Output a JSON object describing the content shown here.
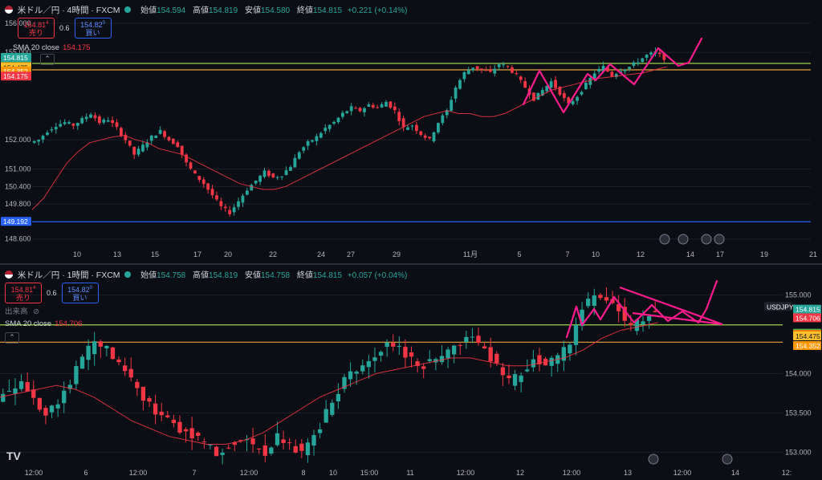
{
  "top": {
    "title": "米ドル／円 · 4時間 · FXCM",
    "ohlc": {
      "o_label": "始値",
      "o": "154.594",
      "h_label": "高値",
      "h": "154.819",
      "l_label": "安値",
      "l": "154.580",
      "c_label": "終値",
      "c": "154.815",
      "change": "+0.221 (+0.14%)"
    },
    "sell": {
      "price": "154.81",
      "sup": "4",
      "label": "売り"
    },
    "buy": {
      "price": "154.82",
      "sup": "0",
      "label": "買い"
    },
    "spread": "0.6",
    "sma_label": "SMA 20 close",
    "sma_value": "154.175"
  },
  "bottom": {
    "title": "米ドル／円 · 1時間 · FXCM",
    "ohlc": {
      "o_label": "始値",
      "o": "154.758",
      "h_label": "高値",
      "h": "154.819",
      "l_label": "安値",
      "l": "154.758",
      "c_label": "終値",
      "c": "154.815",
      "change": "+0.057 (+0.04%)"
    },
    "sell": {
      "price": "154.81",
      "sup": "4",
      "label": "売り"
    },
    "buy": {
      "price": "154.82",
      "sup": "0",
      "label": "買い"
    },
    "spread": "0.6",
    "volume_label": "出来高",
    "sma_label": "SMA 20 close",
    "sma_value": "154.706"
  },
  "chart_data": [
    {
      "type": "candlestick",
      "title": "米ドル／円 · 4時間 · FXCM",
      "ylim": [
        148.4,
        156.3
      ],
      "y_ticks": [
        "156.000",
        "155.000",
        "152.000",
        "151.000",
        "150.400",
        "149.800",
        "148.600"
      ],
      "x_ticks": [
        "10",
        "13",
        "15",
        "17",
        "20",
        "22",
        "24",
        "27",
        "29",
        "11月",
        "5",
        "7",
        "10",
        "12",
        "14",
        "17",
        "19",
        "21"
      ],
      "price_tags": [
        {
          "label": "154.815",
          "sub": "49:04",
          "color": "#26a69a",
          "value": 154.815
        },
        {
          "label": "154.509",
          "color": "#4caf50",
          "value": 154.509
        },
        {
          "label": "154.494",
          "color": "#f57c00",
          "value": 154.494
        },
        {
          "label": "154.475",
          "color": "#fbc02d",
          "value": 154.475
        },
        {
          "label": "154.352",
          "color": "#ff9800",
          "value": 154.352
        },
        {
          "label": "154.175",
          "color": "#f23645",
          "value": 154.175
        },
        {
          "label": "149.192",
          "color": "#2962ff",
          "value": 149.192
        }
      ],
      "h_lines": [
        {
          "value": 154.62,
          "color": "#9bd34b"
        },
        {
          "value": 154.4,
          "color": "#e6a23c"
        },
        {
          "value": 149.192,
          "color": "#2962ff"
        }
      ],
      "close_path": [
        152.0,
        152.3,
        152.5,
        152.6,
        152.5,
        152.7,
        152.9,
        152.6,
        152.7,
        152.4,
        152.0,
        151.5,
        151.8,
        152.1,
        152.3,
        152.0,
        151.8,
        151.2,
        150.8,
        150.5,
        150.1,
        149.7,
        149.5,
        149.9,
        150.3,
        150.6,
        150.9,
        150.7,
        150.8,
        151.1,
        151.6,
        151.9,
        152.1,
        152.4,
        152.6,
        152.9,
        153.1,
        153.0,
        153.2,
        153.1,
        153.3,
        153.0,
        152.4,
        152.5,
        152.2,
        152.0,
        152.6,
        153.0,
        153.8,
        154.3,
        154.5,
        154.4,
        154.3,
        154.6,
        154.5,
        154.2,
        153.8,
        153.4,
        153.7,
        154.0,
        153.6,
        153.2,
        153.5,
        153.9,
        154.3,
        154.5,
        154.2,
        154.4,
        154.5,
        154.7,
        154.9,
        155.0,
        154.8
      ],
      "sma_path": [
        149.6,
        150.0,
        150.6,
        151.2,
        151.6,
        151.9,
        152.0,
        152.1,
        152.15,
        152.0,
        151.9,
        151.7,
        151.6,
        151.5,
        151.3,
        151.1,
        150.9,
        150.7,
        150.5,
        150.4,
        150.3,
        150.3,
        150.4,
        150.6,
        150.8,
        151.0,
        151.2,
        151.4,
        151.6,
        151.8,
        152.0,
        152.2,
        152.4,
        152.6,
        152.8,
        152.9,
        153.0,
        152.9,
        152.9,
        152.8,
        152.8,
        152.9,
        153.1,
        153.3,
        153.5,
        153.7,
        153.8,
        153.9,
        154.0,
        154.1,
        154.15,
        154.2,
        154.25,
        154.3,
        154.4,
        154.5
      ],
      "drawn_pattern": "pink zigzag and curve"
    },
    {
      "type": "candlestick",
      "title": "米ドル／円 · 1時間 · FXCM",
      "ylim": [
        152.85,
        155.2
      ],
      "y_ticks": [
        "155.000",
        "154.000",
        "153.500",
        "153.000"
      ],
      "x_ticks": [
        "12:00",
        "6",
        "12:00",
        "7",
        "12:00",
        "8",
        "10",
        "15:00",
        "11",
        "12:00",
        "12",
        "12:00",
        "13",
        "12:00",
        "14",
        "12:"
      ],
      "price_tags": [
        {
          "label": "USDJPY",
          "color": "#1e222d",
          "value": 154.85
        },
        {
          "label": "154.815",
          "sub": "49:05",
          "color": "#26a69a",
          "value": 154.815
        },
        {
          "label": "154.706",
          "color": "#f23645",
          "value": 154.706
        },
        {
          "label": "154.509",
          "color": "#4caf50",
          "value": 154.509
        },
        {
          "label": "154.494",
          "color": "#f57c00",
          "value": 154.494
        },
        {
          "label": "154.475",
          "color": "#fbc02d",
          "value": 154.475
        },
        {
          "label": "154.352",
          "color": "#ff9800",
          "value": 154.352
        }
      ],
      "h_lines": [
        {
          "value": 154.62,
          "color": "#9bd34b"
        },
        {
          "value": 154.4,
          "color": "#e6a23c"
        }
      ],
      "close_path": [
        153.8,
        153.9,
        153.7,
        153.5,
        153.6,
        153.9,
        154.2,
        154.4,
        154.3,
        154.1,
        153.9,
        153.7,
        153.5,
        153.4,
        153.3,
        153.2,
        153.1,
        153.0,
        153.1,
        153.2,
        153.1,
        153.0,
        153.2,
        153.1,
        153.0,
        153.2,
        153.5,
        153.8,
        154.0,
        154.1,
        154.2,
        154.4,
        154.3,
        154.2,
        154.1,
        154.2,
        154.3,
        154.4,
        154.5,
        154.3,
        154.1,
        153.9,
        154.0,
        154.2,
        154.1,
        154.2,
        154.4,
        154.8,
        155.0,
        154.9,
        154.8,
        154.6,
        154.7,
        154.8
      ],
      "sma_path": [
        153.7,
        153.75,
        153.8,
        153.85,
        153.8,
        153.7,
        153.55,
        153.4,
        153.3,
        153.2,
        153.15,
        153.1,
        153.1,
        153.15,
        153.25,
        153.4,
        153.55,
        153.7,
        153.8,
        153.9,
        154.0,
        154.05,
        154.1,
        154.15,
        154.2,
        154.2,
        154.15,
        154.1,
        154.1,
        154.15,
        154.2,
        154.3,
        154.45,
        154.55,
        154.6,
        154.65
      ],
      "drawn_pattern": "pink triangle and zigzag"
    }
  ],
  "colors": {
    "up": "#26a69a",
    "down": "#f23645",
    "sma": "#f23645",
    "pattern": "#ff1c8d"
  }
}
